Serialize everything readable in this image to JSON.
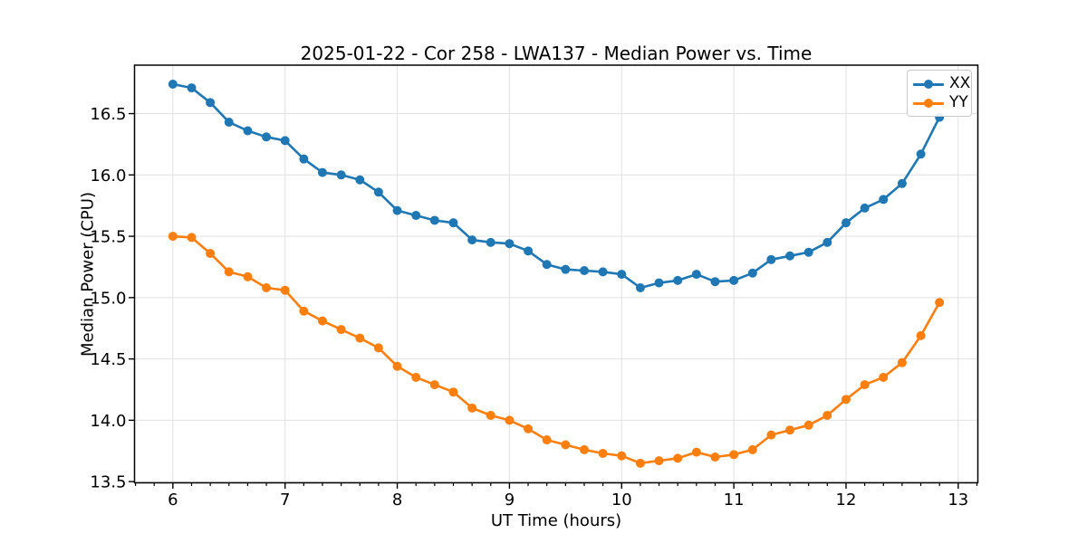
{
  "chart_data": {
    "type": "line",
    "title": "2025-01-22 - Cor 258 - LWA137 - Median Power vs. Time",
    "xlabel": "UT Time (hours)",
    "ylabel": "Median Power (CPU)",
    "xlim": [
      5.658,
      13.175
    ],
    "ylim": [
      13.49,
      16.895
    ],
    "x_ticks": [
      6,
      7,
      8,
      9,
      10,
      11,
      12,
      13
    ],
    "y_ticks": [
      13.5,
      14.0,
      14.5,
      15.0,
      15.5,
      16.0,
      16.5
    ],
    "x_minor_ticks_per_interval": 6,
    "grid": true,
    "legend_position": "upper right",
    "x": [
      6.0,
      6.167,
      6.333,
      6.5,
      6.667,
      6.833,
      7.0,
      7.167,
      7.333,
      7.5,
      7.667,
      7.833,
      8.0,
      8.167,
      8.333,
      8.5,
      8.667,
      8.833,
      9.0,
      9.167,
      9.333,
      9.5,
      9.667,
      9.833,
      10.0,
      10.167,
      10.333,
      10.5,
      10.667,
      10.833,
      11.0,
      11.167,
      11.333,
      11.5,
      11.667,
      11.833,
      12.0,
      12.167,
      12.333,
      12.5,
      12.667,
      12.833
    ],
    "series": [
      {
        "name": "XX",
        "color": "#1f77b4",
        "values": [
          16.74,
          16.71,
          16.59,
          16.43,
          16.36,
          16.31,
          16.28,
          16.13,
          16.02,
          16.0,
          15.96,
          15.86,
          15.71,
          15.67,
          15.63,
          15.61,
          15.47,
          15.45,
          15.44,
          15.38,
          15.27,
          15.23,
          15.22,
          15.21,
          15.19,
          15.08,
          15.12,
          15.14,
          15.19,
          15.13,
          15.14,
          15.2,
          15.31,
          15.34,
          15.37,
          15.45,
          15.61,
          15.73,
          15.8,
          15.93,
          16.17,
          16.47
        ]
      },
      {
        "name": "YY",
        "color": "#ff7f0e",
        "values": [
          15.5,
          15.49,
          15.36,
          15.21,
          15.17,
          15.08,
          15.06,
          14.89,
          14.81,
          14.74,
          14.67,
          14.59,
          14.44,
          14.35,
          14.29,
          14.23,
          14.1,
          14.04,
          14.0,
          13.93,
          13.84,
          13.8,
          13.76,
          13.73,
          13.71,
          13.65,
          13.67,
          13.69,
          13.74,
          13.7,
          13.72,
          13.76,
          13.88,
          13.92,
          13.96,
          14.04,
          14.17,
          14.29,
          14.35,
          14.47,
          14.69,
          14.96
        ]
      }
    ],
    "style": {
      "grid_color": "#e0e0e0",
      "spine_color": "#000000",
      "tick_color": "#000000",
      "background": "#ffffff"
    },
    "legend": {
      "labels": [
        "XX",
        "YY"
      ]
    }
  }
}
